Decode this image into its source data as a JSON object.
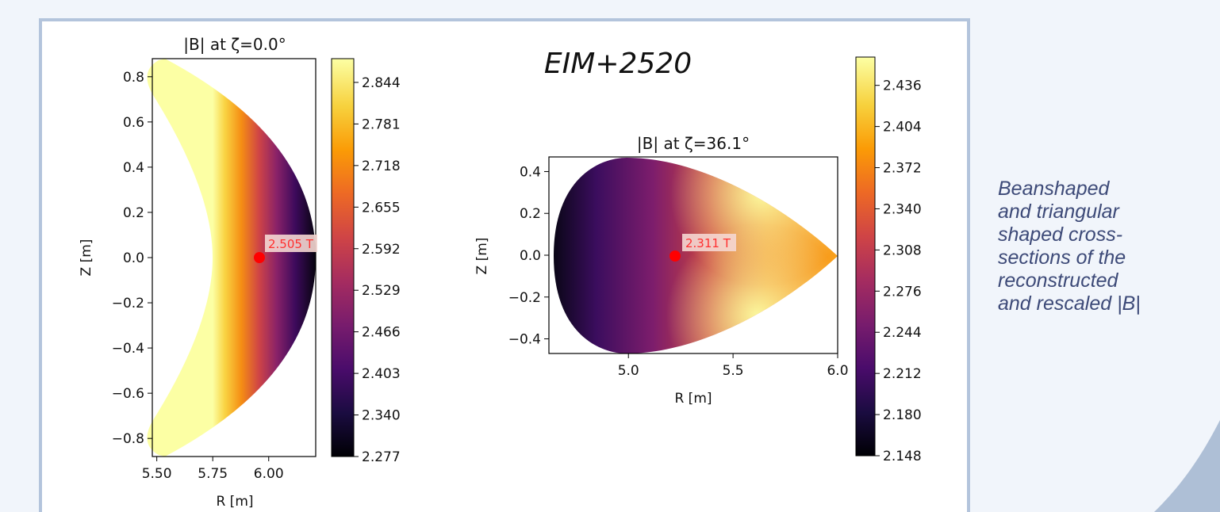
{
  "headline": "EIM+2520",
  "caption_lines": [
    "Beanshaped",
    "and triangular",
    "shaped cross-",
    "sections of the",
    "reconstructed",
    "and rescaled |B|"
  ],
  "colormap": "inferno",
  "chart_data": [
    {
      "type": "heatmap",
      "title": "|B| at ζ=0.0°",
      "xlabel": "R [m]",
      "ylabel": "Z [m]",
      "xlim": [
        5.48,
        6.21
      ],
      "ylim": [
        -0.88,
        0.88
      ],
      "xticks": [
        "5.50",
        "5.75",
        "6.00"
      ],
      "yticks": [
        "0.8",
        "0.6",
        "0.4",
        "0.2",
        "0.0",
        "−0.2",
        "−0.4",
        "−0.6",
        "−0.8"
      ],
      "colorbar_ticks": [
        "2.844",
        "2.781",
        "2.718",
        "2.655",
        "2.592",
        "2.529",
        "2.466",
        "2.403",
        "2.340",
        "2.277"
      ],
      "colorbar_range": [
        2.277,
        2.88
      ],
      "marker": {
        "R": 5.97,
        "Z": 0.0,
        "label": "2.505 T",
        "color": "#ff0000"
      }
    },
    {
      "type": "heatmap",
      "title": "|B| at ζ=36.1°",
      "xlabel": "R [m]",
      "ylabel": "Z [m]",
      "xlim": [
        4.62,
        6.0
      ],
      "ylim": [
        -0.47,
        0.47
      ],
      "xticks": [
        "5.0",
        "5.5",
        "6.0"
      ],
      "yticks": [
        "0.4",
        "0.2",
        "0.0",
        "−0.2",
        "−0.4"
      ],
      "colorbar_ticks": [
        "2.436",
        "2.404",
        "2.372",
        "2.340",
        "2.308",
        "2.276",
        "2.244",
        "2.212",
        "2.180",
        "2.148"
      ],
      "colorbar_range": [
        2.148,
        2.458
      ],
      "marker": {
        "R": 5.22,
        "Z": 0.0,
        "label": "2.311 T",
        "color": "#ff0000"
      }
    }
  ]
}
